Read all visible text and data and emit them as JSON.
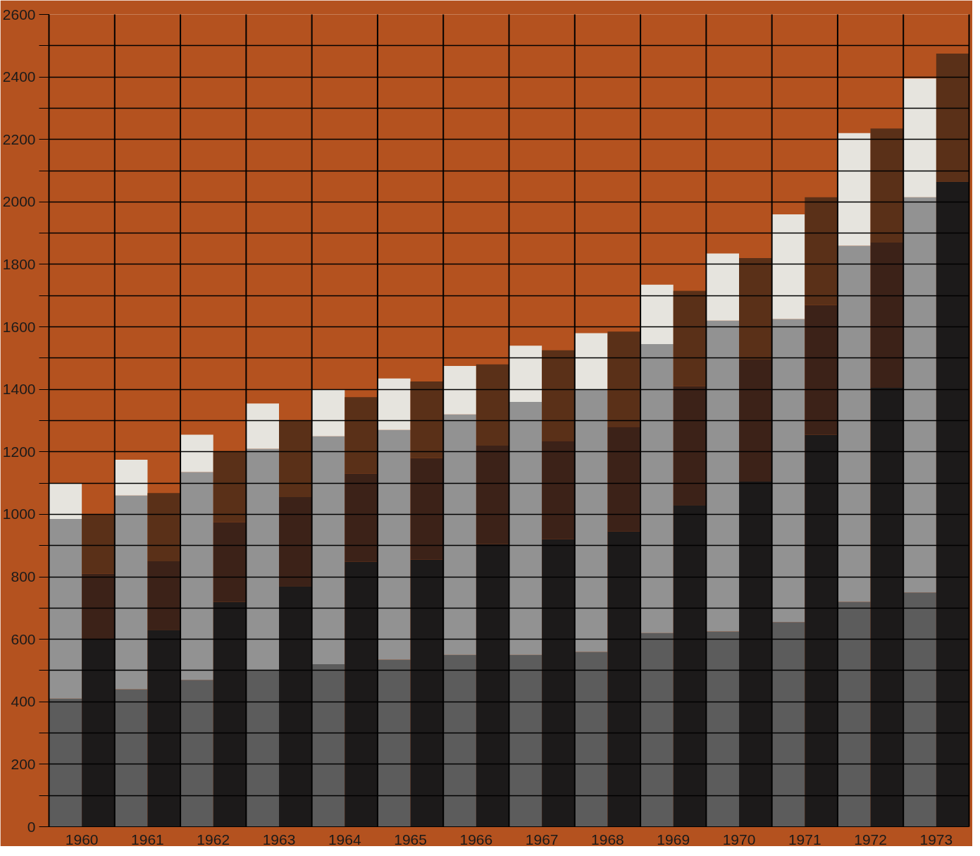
{
  "chart_data": {
    "type": "bar",
    "series": [
      {
        "x": [
          1959.75,
          1960.75,
          1961.75,
          1962.75,
          1963.75,
          1964.75,
          1965.75,
          1966.75,
          1967.75,
          1968.75,
          1969.75,
          1970.75,
          1971.75,
          1972.75
        ],
        "color": "#5c5c5c",
        "base": [
          0,
          0,
          0,
          0,
          0,
          0,
          0,
          0,
          0,
          0,
          0,
          0,
          0,
          0
        ],
        "values": [
          410,
          440,
          470,
          500,
          520,
          535,
          550,
          550,
          560,
          620,
          625,
          655,
          720,
          750
        ]
      },
      {
        "x": [
          1959.75,
          1960.75,
          1961.75,
          1962.75,
          1963.75,
          1964.75,
          1965.75,
          1966.75,
          1967.75,
          1968.75,
          1969.75,
          1970.75,
          1971.75,
          1972.75
        ],
        "color": "#929292",
        "base": [
          410,
          440,
          470,
          500,
          520,
          535,
          550,
          550,
          560,
          620,
          625,
          655,
          720,
          750
        ],
        "values": [
          575,
          620,
          665,
          710,
          730,
          735,
          770,
          810,
          840,
          925,
          995,
          970,
          1140,
          1265
        ]
      },
      {
        "x": [
          1959.75,
          1960.75,
          1961.75,
          1962.75,
          1963.75,
          1964.75,
          1965.75,
          1966.75,
          1967.75,
          1968.75,
          1969.75,
          1970.75,
          1971.75,
          1972.75
        ],
        "color": "#e6e4de",
        "base": [
          985,
          1060,
          1135,
          1210,
          1250,
          1270,
          1320,
          1360,
          1400,
          1545,
          1620,
          1625,
          1860,
          2015
        ],
        "values": [
          115,
          115,
          120,
          145,
          150,
          165,
          155,
          180,
          180,
          190,
          215,
          335,
          360,
          380
        ]
      },
      {
        "x": [
          1960.25,
          1961.25,
          1962.25,
          1963.25,
          1964.25,
          1965.25,
          1966.25,
          1967.25,
          1968.25,
          1969.25,
          1970.25,
          1971.25,
          1972.25,
          1973.25
        ],
        "color": "#1c1a1a",
        "base": [
          0,
          0,
          0,
          0,
          0,
          0,
          0,
          0,
          0,
          0,
          0,
          0,
          0,
          0
        ],
        "values": [
          600,
          630,
          720,
          770,
          848,
          855,
          905,
          920,
          945,
          1030,
          1105,
          1255,
          1405,
          2065
        ]
      },
      {
        "x": [
          1960.25,
          1961.25,
          1962.25,
          1963.25,
          1964.25,
          1965.25,
          1966.25,
          1967.25,
          1968.25,
          1969.25,
          1970.25,
          1971.25,
          1972.25
        ],
        "color": "#3c2218",
        "base": [
          600,
          630,
          720,
          770,
          848,
          855,
          905,
          920,
          945,
          1030,
          1105,
          1255,
          1405
        ],
        "values": [
          210,
          220,
          255,
          285,
          282,
          325,
          315,
          315,
          335,
          380,
          390,
          415,
          465
        ]
      },
      {
        "x": [
          1960.25,
          1961.25,
          1962.25,
          1963.25,
          1964.25,
          1965.25,
          1966.25,
          1967.25,
          1968.25,
          1969.25,
          1970.25,
          1971.25,
          1972.25,
          1973.25
        ],
        "color": "#5a3018",
        "base": [
          810,
          850,
          975,
          1055,
          1130,
          1180,
          1220,
          1235,
          1280,
          1410,
          1495,
          1670,
          1870,
          2065
        ],
        "values": [
          190,
          218,
          225,
          245,
          245,
          245,
          260,
          290,
          305,
          305,
          325,
          345,
          365,
          410
        ]
      }
    ],
    "xlim": [
      1959.5,
      1973.5
    ],
    "xticks": [
      1960,
      1961,
      1962,
      1963,
      1964,
      1965,
      1966,
      1967,
      1968,
      1969,
      1970,
      1971,
      1972,
      1973
    ],
    "ylim": [
      0,
      2600
    ],
    "yticks": [
      0,
      {
        "value": 100,
        "label": null
      },
      200,
      {
        "value": 300,
        "label": null
      },
      400,
      {
        "value": 500,
        "label": null
      },
      600,
      {
        "value": 700,
        "label": null
      },
      800,
      {
        "value": 900,
        "label": null
      },
      1000,
      {
        "value": 1100,
        "label": null
      },
      1200,
      {
        "value": 1300,
        "label": null
      },
      1400,
      {
        "value": 1500,
        "label": null
      },
      1600,
      {
        "value": 1700,
        "label": null
      },
      1800,
      {
        "value": 1900,
        "label": null
      },
      2000,
      {
        "value": 2100,
        "label": null
      },
      2200,
      {
        "value": 2300,
        "label": null
      },
      2400,
      {
        "value": 2500,
        "label": null
      },
      2600
    ],
    "ref_lines": [
      {
        "axis": "x",
        "value": 1959.5
      },
      {
        "axis": "x",
        "value": 1960.5
      },
      {
        "axis": "x",
        "value": 1961.5
      },
      {
        "axis": "x",
        "value": 1962.5
      },
      {
        "axis": "x",
        "value": 1963.5
      },
      {
        "axis": "x",
        "value": 1964.5
      },
      {
        "axis": "x",
        "value": 1965.5
      },
      {
        "axis": "x",
        "value": 1966.5
      },
      {
        "axis": "x",
        "value": 1967.5
      },
      {
        "axis": "x",
        "value": 1968.5
      },
      {
        "axis": "x",
        "value": 1969.5
      },
      {
        "axis": "x",
        "value": 1970.5
      },
      {
        "axis": "x",
        "value": 1971.5
      },
      {
        "axis": "x",
        "value": 1972.5
      },
      {
        "axis": "x",
        "value": 1973.5
      }
    ],
    "grid": "y"
  }
}
